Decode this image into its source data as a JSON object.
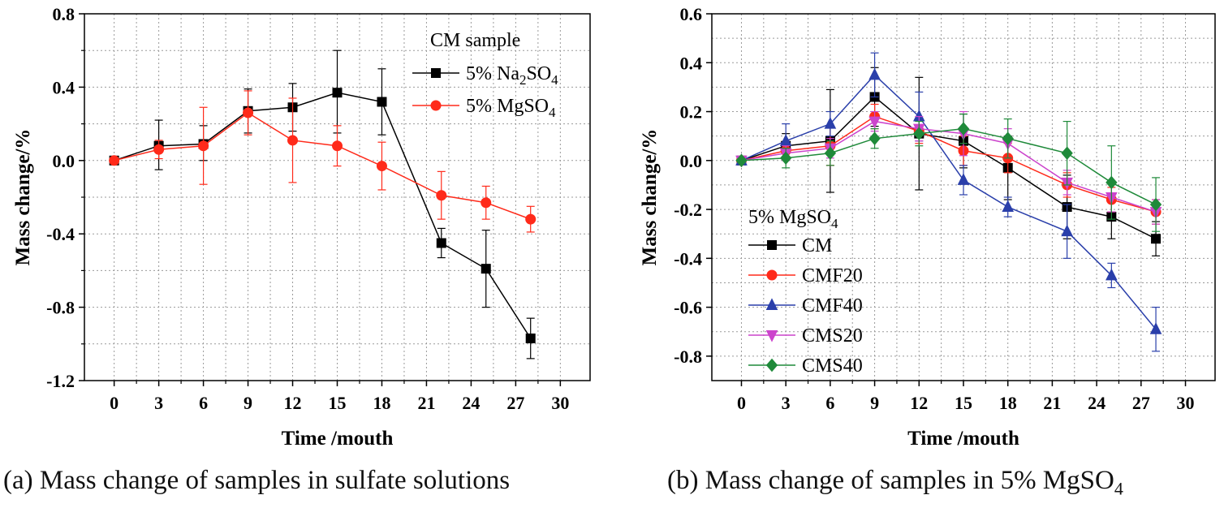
{
  "captions": {
    "a": "(a) Mass change of samples in sulfate solutions",
    "b_prefix": "(b) Mass change of samples in 5% MgSO",
    "b_sub": "4"
  },
  "chart_data": [
    {
      "type": "line",
      "panel": "a",
      "xlabel": "Time /mouth",
      "ylabel": "Mass change/%",
      "xlim": [
        -2,
        32
      ],
      "ylim": [
        -1.2,
        0.8
      ],
      "xticks": [
        0,
        3,
        6,
        9,
        12,
        15,
        18,
        21,
        24,
        27,
        30
      ],
      "yticks": [
        -1.2,
        -0.8,
        -0.4,
        0.0,
        0.4,
        0.8
      ],
      "ytick_labels": [
        "-1.2",
        "-0.8",
        "-0.4",
        "0.0",
        "0.4",
        "0.8"
      ],
      "grid": true,
      "legend": {
        "title": "CM sample",
        "position": "top-right",
        "entries": [
          {
            "name": "5% Na",
            "sub1": "2",
            "mid": "SO",
            "sub2": "4"
          },
          {
            "name": "5% MgSO",
            "sub1": "4",
            "mid": "",
            "sub2": ""
          }
        ]
      },
      "series": [
        {
          "name": "5% Na2SO4",
          "color": "#000000",
          "marker": "square",
          "x": [
            0,
            3,
            6,
            9,
            12,
            15,
            18,
            22,
            25,
            28
          ],
          "y": [
            0.0,
            0.08,
            0.09,
            0.27,
            0.29,
            0.37,
            0.32,
            -0.45,
            -0.59,
            -0.97
          ],
          "err_low": [
            0,
            0.13,
            0.09,
            0.12,
            0.13,
            0.22,
            0.18,
            0.08,
            0.21,
            0.11
          ],
          "err_high": [
            0,
            0.14,
            0.1,
            0.12,
            0.13,
            0.23,
            0.18,
            0.08,
            0.21,
            0.11
          ]
        },
        {
          "name": "5% MgSO4",
          "color": "#ff2a1a",
          "marker": "circle",
          "x": [
            0,
            3,
            6,
            9,
            12,
            15,
            18,
            22,
            25,
            28
          ],
          "y": [
            0.0,
            0.06,
            0.08,
            0.26,
            0.11,
            0.08,
            -0.03,
            -0.19,
            -0.23,
            -0.32
          ],
          "err_low": [
            0,
            0.05,
            0.21,
            0.12,
            0.23,
            0.11,
            0.13,
            0.13,
            0.09,
            0.07
          ],
          "err_high": [
            0,
            0.05,
            0.21,
            0.12,
            0.23,
            0.11,
            0.13,
            0.13,
            0.09,
            0.07
          ]
        }
      ]
    },
    {
      "type": "line",
      "panel": "b",
      "xlabel": "Time /mouth",
      "ylabel": "Mass change/%",
      "xlim": [
        -2,
        32
      ],
      "ylim": [
        -0.9,
        0.6
      ],
      "xticks": [
        0,
        3,
        6,
        9,
        12,
        15,
        18,
        21,
        24,
        27,
        30
      ],
      "yticks": [
        -0.8,
        -0.6,
        -0.4,
        -0.2,
        0.0,
        0.2,
        0.4,
        0.6
      ],
      "ytick_labels": [
        "-0.8",
        "-0.6",
        "-0.4",
        "-0.2",
        "0.0",
        "0.2",
        "0.4",
        "0.6"
      ],
      "grid": true,
      "legend": {
        "title": "5% MgSO",
        "title_sub": "4",
        "position": "bottom-left",
        "entries": [
          {
            "name": "CM"
          },
          {
            "name": "CMF20"
          },
          {
            "name": "CMF40"
          },
          {
            "name": "CMS20"
          },
          {
            "name": "CMS40"
          }
        ]
      },
      "series": [
        {
          "name": "CM",
          "color": "#000000",
          "marker": "square",
          "x": [
            0,
            3,
            6,
            9,
            12,
            15,
            18,
            22,
            25,
            28
          ],
          "y": [
            0.0,
            0.06,
            0.08,
            0.26,
            0.11,
            0.08,
            -0.03,
            -0.19,
            -0.23,
            -0.32
          ],
          "err_low": [
            0,
            0.05,
            0.21,
            0.12,
            0.23,
            0.11,
            0.13,
            0.13,
            0.09,
            0.07
          ],
          "err_high": [
            0,
            0.05,
            0.21,
            0.12,
            0.23,
            0.11,
            0.13,
            0.13,
            0.09,
            0.07
          ]
        },
        {
          "name": "CMF20",
          "color": "#ff2a1a",
          "marker": "circle",
          "x": [
            0,
            3,
            6,
            9,
            12,
            15,
            18,
            22,
            25,
            28
          ],
          "y": [
            0.0,
            0.04,
            0.06,
            0.18,
            0.12,
            0.04,
            0.01,
            -0.1,
            -0.16,
            -0.21
          ],
          "err_low": [
            0,
            0.03,
            0.08,
            0.05,
            0.05,
            0.06,
            0.06,
            0.05,
            0.05,
            0.05
          ],
          "err_high": [
            0,
            0.03,
            0.08,
            0.05,
            0.05,
            0.06,
            0.06,
            0.05,
            0.05,
            0.05
          ]
        },
        {
          "name": "CMF40",
          "color": "#2a3faa",
          "marker": "triangle-up",
          "x": [
            0,
            3,
            6,
            9,
            12,
            15,
            18,
            22,
            25,
            28
          ],
          "y": [
            0.0,
            0.08,
            0.15,
            0.35,
            0.18,
            -0.08,
            -0.19,
            -0.29,
            -0.47,
            -0.69
          ],
          "err_low": [
            0,
            0.07,
            0.05,
            0.09,
            0.1,
            0.06,
            0.04,
            0.11,
            0.05,
            0.09
          ],
          "err_high": [
            0,
            0.07,
            0.05,
            0.09,
            0.1,
            0.06,
            0.04,
            0.11,
            0.05,
            0.09
          ]
        },
        {
          "name": "CMS20",
          "color": "#cc44cc",
          "marker": "triangle-down",
          "x": [
            0,
            3,
            6,
            9,
            12,
            15,
            18,
            22,
            25,
            28
          ],
          "y": [
            0.0,
            0.03,
            0.05,
            0.16,
            0.13,
            0.11,
            0.07,
            -0.09,
            -0.15,
            -0.21
          ],
          "err_low": [
            0,
            0.03,
            0.04,
            0.04,
            0.05,
            0.09,
            0.06,
            0.05,
            0.06,
            0.05
          ],
          "err_high": [
            0,
            0.03,
            0.04,
            0.04,
            0.05,
            0.09,
            0.06,
            0.05,
            0.06,
            0.05
          ]
        },
        {
          "name": "CMS40",
          "color": "#1f8a3a",
          "marker": "diamond",
          "x": [
            0,
            3,
            6,
            9,
            12,
            15,
            18,
            22,
            25,
            28
          ],
          "y": [
            0.0,
            0.01,
            0.03,
            0.09,
            0.11,
            0.13,
            0.09,
            0.03,
            -0.09,
            -0.18
          ],
          "err_low": [
            0,
            0.04,
            0.05,
            0.04,
            0.05,
            0.06,
            0.08,
            0.13,
            0.15,
            0.11
          ],
          "err_high": [
            0,
            0.04,
            0.05,
            0.04,
            0.05,
            0.06,
            0.08,
            0.13,
            0.15,
            0.11
          ]
        }
      ]
    }
  ]
}
